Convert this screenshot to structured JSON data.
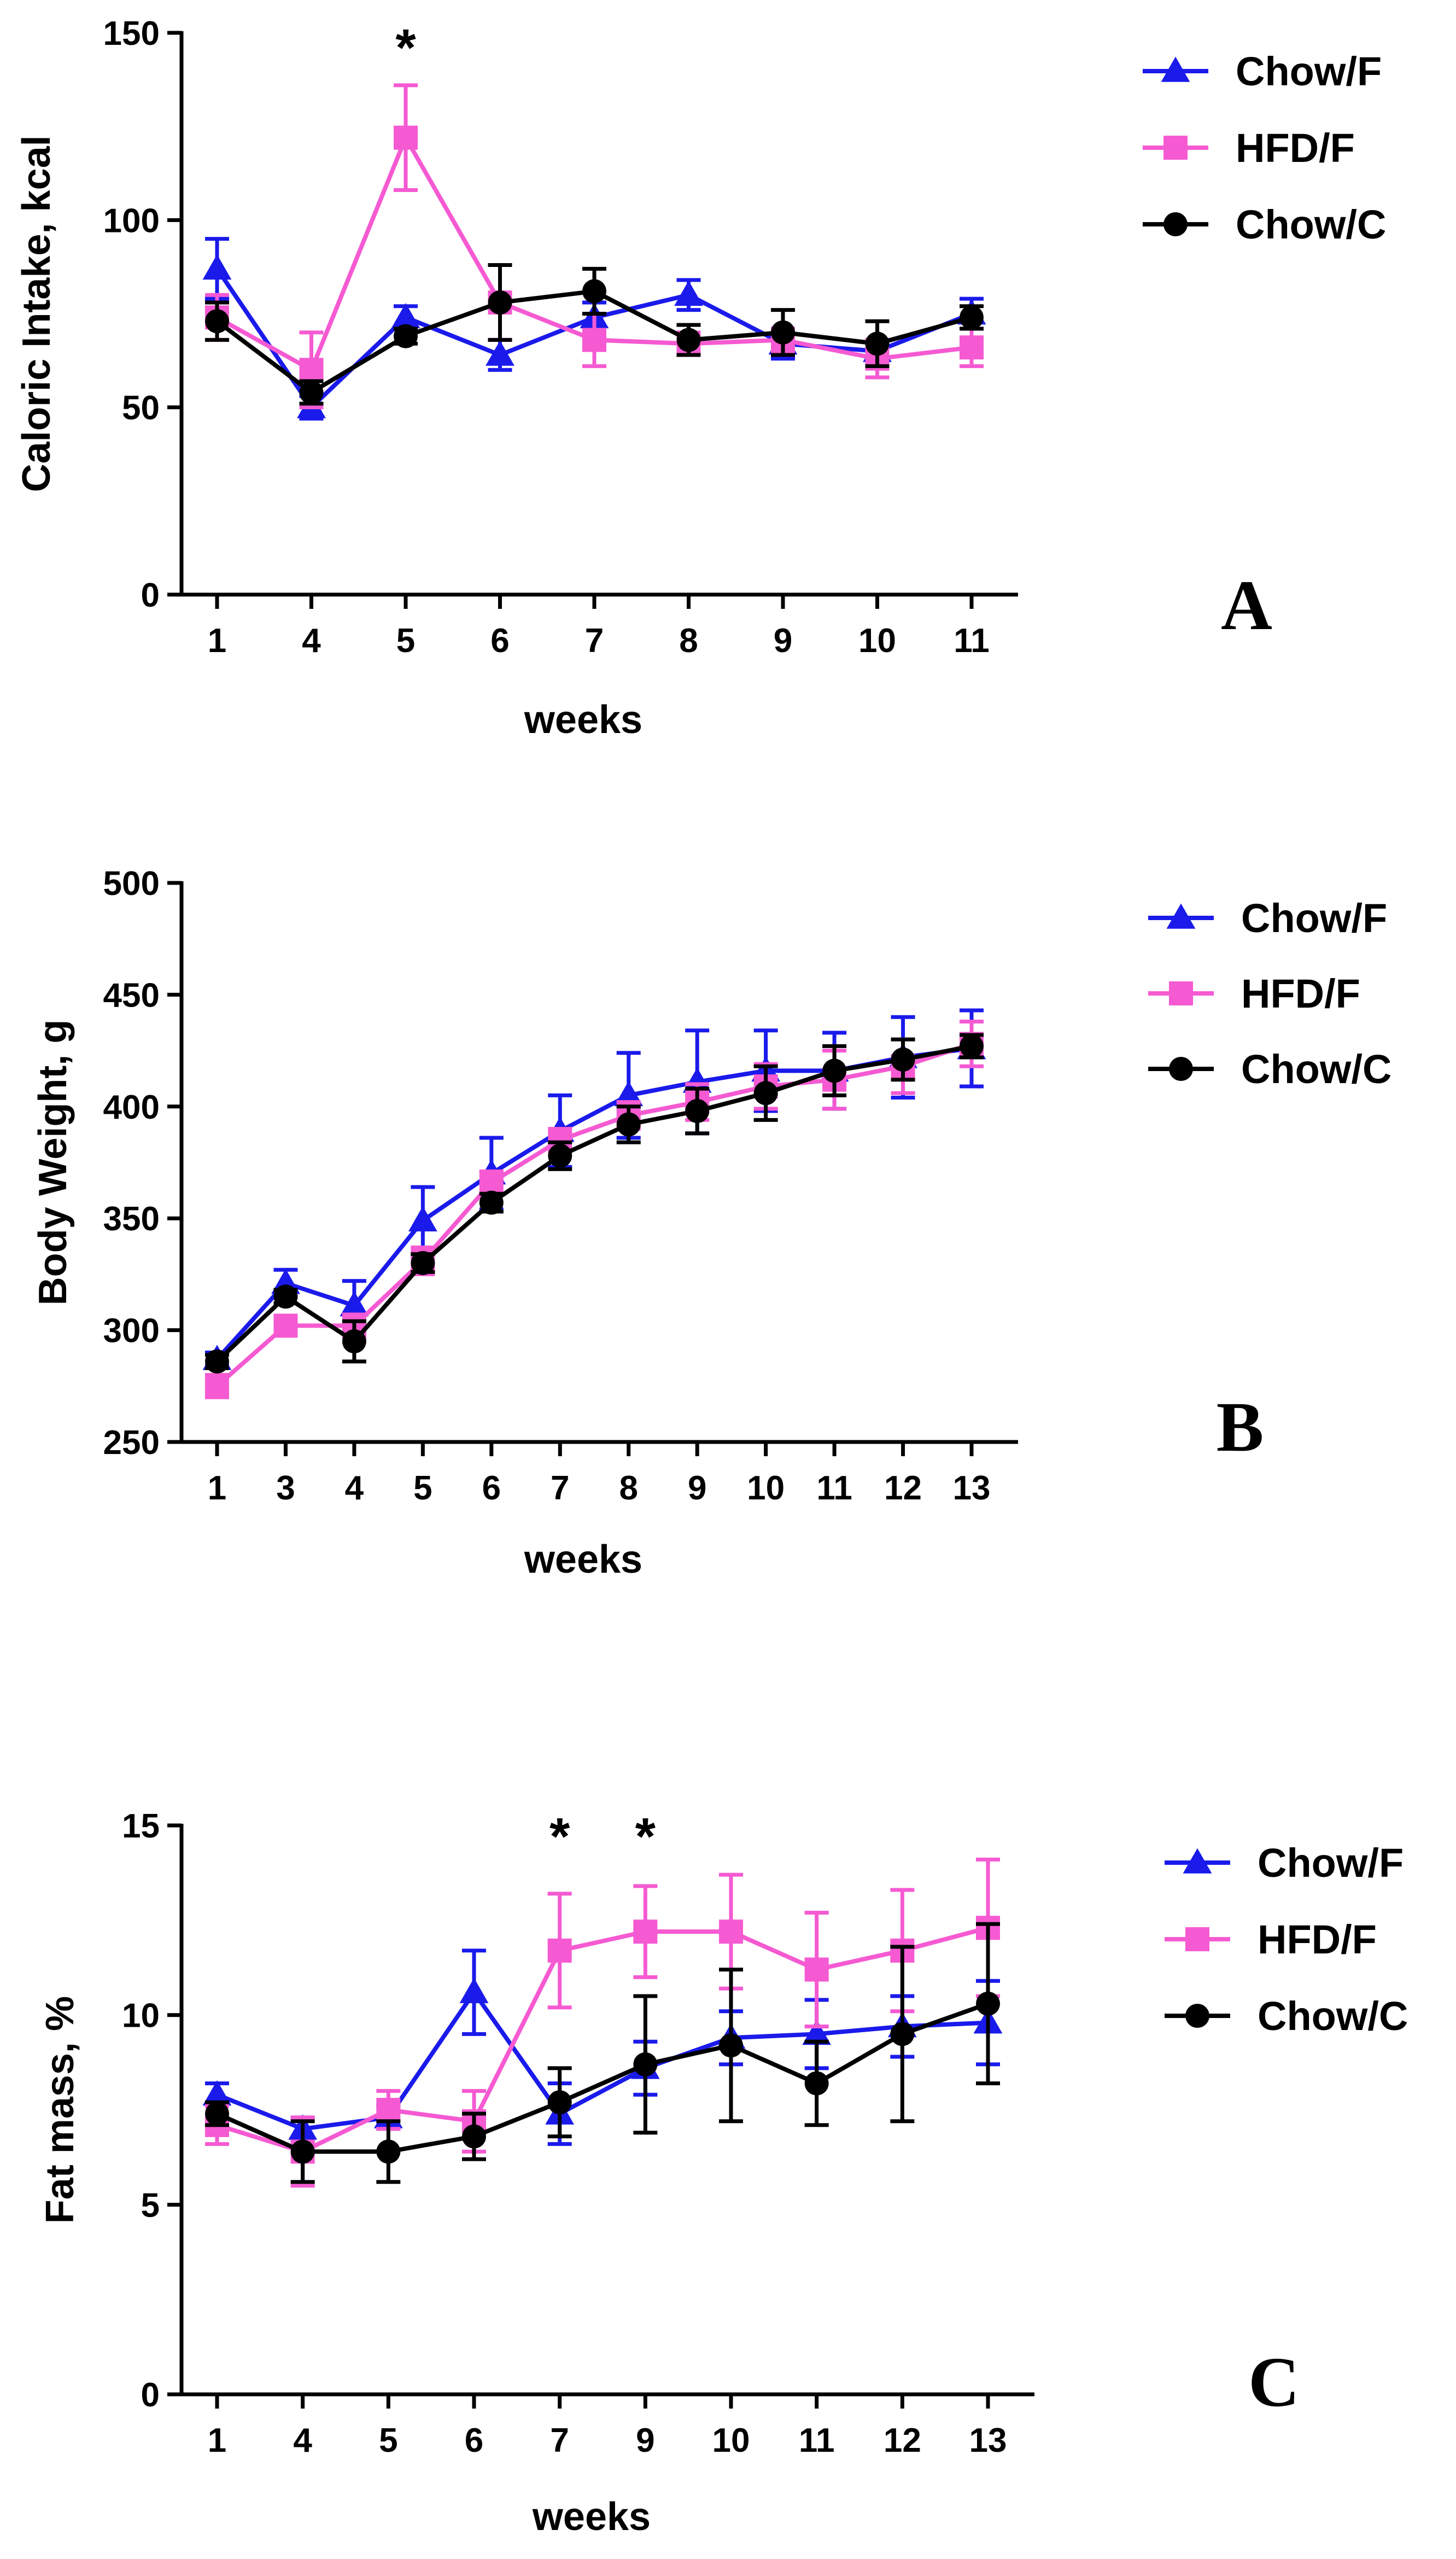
{
  "colors": {
    "chow_f": "#1a1aeb",
    "hfd_f": "#f55ad2",
    "chow_c": "#000000"
  },
  "chart_data": [
    {
      "type": "line",
      "panel": "A",
      "xlabel": "weeks",
      "ylabel": "Caloric Intake, kcal",
      "categories": [
        "1",
        "4",
        "5",
        "6",
        "7",
        "8",
        "9",
        "10",
        "11"
      ],
      "ylim": [
        0,
        150
      ],
      "yticks": [
        "0",
        "50",
        "100",
        "150"
      ],
      "annotations": [
        {
          "category": "5",
          "text": "*"
        }
      ],
      "legend_position": "top-right",
      "series": [
        {
          "name": "Chow/F",
          "marker": "triangle",
          "values": [
            87,
            50,
            74,
            64,
            74,
            80,
            67,
            65,
            75
          ],
          "errors": [
            8,
            3,
            3,
            4,
            4,
            4,
            4,
            3,
            4
          ]
        },
        {
          "name": "HFD/F",
          "marker": "square",
          "values": [
            74,
            60,
            122,
            78,
            68,
            67,
            68,
            63,
            66
          ],
          "errors": [
            6,
            10,
            14,
            10,
            7,
            3,
            3,
            5,
            5
          ]
        },
        {
          "name": "Chow/C",
          "marker": "circle",
          "values": [
            73,
            54,
            69,
            78,
            81,
            68,
            70,
            67,
            74
          ],
          "errors": [
            5,
            3,
            2,
            10,
            6,
            4,
            6,
            6,
            3
          ]
        }
      ]
    },
    {
      "type": "line",
      "panel": "B",
      "xlabel": "weeks",
      "ylabel": "Body Weight, g",
      "categories": [
        "1",
        "3",
        "4",
        "5",
        "6",
        "7",
        "8",
        "9",
        "10",
        "11",
        "12",
        "13"
      ],
      "ylim": [
        250,
        500
      ],
      "yticks": [
        "250",
        "300",
        "350",
        "400",
        "450",
        "500"
      ],
      "annotations": [],
      "legend_position": "top-right",
      "series": [
        {
          "name": "Chow/F",
          "marker": "triangle",
          "values": [
            287,
            321,
            311,
            349,
            370,
            389,
            405,
            411,
            416,
            416,
            422,
            426
          ],
          "errors": [
            3,
            6,
            11,
            15,
            16,
            16,
            19,
            23,
            18,
            17,
            18,
            17
          ]
        },
        {
          "name": "HFD/F",
          "marker": "square",
          "values": [
            275,
            302,
            302,
            331,
            366,
            385,
            396,
            402,
            409,
            412,
            418,
            428
          ],
          "errors": [
            5,
            4,
            5,
            6,
            5,
            5,
            6,
            8,
            10,
            13,
            12,
            10
          ]
        },
        {
          "name": "Chow/C",
          "marker": "circle",
          "values": [
            286,
            315,
            295,
            330,
            357,
            378,
            392,
            398,
            406,
            416,
            421,
            427
          ],
          "errors": [
            3,
            3,
            9,
            4,
            4,
            6,
            8,
            10,
            12,
            11,
            9,
            5
          ]
        }
      ]
    },
    {
      "type": "line",
      "panel": "C",
      "xlabel": "weeks",
      "ylabel": "Fat mass, %",
      "categories": [
        "1",
        "4",
        "5",
        "6",
        "7",
        "9",
        "10",
        "11",
        "12",
        "13"
      ],
      "ylim": [
        0,
        15
      ],
      "yticks": [
        "0",
        "5",
        "10",
        "15"
      ],
      "annotations": [
        {
          "category": "7",
          "text": "*"
        },
        {
          "category": "9",
          "text": "*"
        }
      ],
      "legend_position": "top-right",
      "series": [
        {
          "name": "Chow/F",
          "marker": "triangle",
          "values": [
            7.9,
            7.0,
            7.3,
            10.6,
            7.4,
            8.6,
            9.4,
            9.5,
            9.7,
            9.8
          ],
          "errors": [
            0.3,
            0.3,
            0.3,
            1.1,
            0.8,
            0.7,
            0.7,
            0.9,
            0.8,
            1.1
          ]
        },
        {
          "name": "HFD/F",
          "marker": "square",
          "values": [
            7.1,
            6.4,
            7.5,
            7.2,
            11.7,
            12.2,
            12.2,
            11.2,
            11.7,
            12.3
          ],
          "errors": [
            0.5,
            0.9,
            0.5,
            0.8,
            1.5,
            1.2,
            1.5,
            1.5,
            1.6,
            1.8
          ]
        },
        {
          "name": "Chow/C",
          "marker": "circle",
          "values": [
            7.4,
            6.4,
            6.4,
            6.8,
            7.7,
            8.7,
            9.2,
            8.2,
            9.5,
            10.3
          ],
          "errors": [
            0.3,
            0.8,
            0.8,
            0.6,
            0.9,
            1.8,
            2.0,
            1.1,
            2.3,
            2.1
          ]
        }
      ]
    }
  ]
}
